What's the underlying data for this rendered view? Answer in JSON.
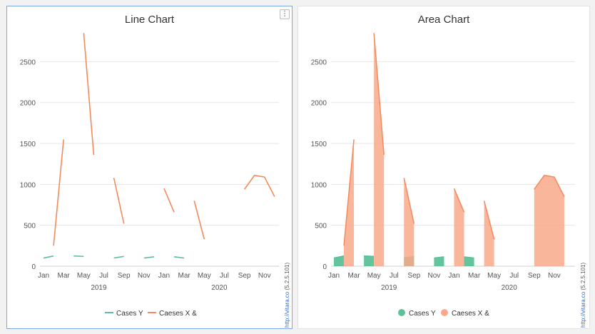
{
  "accent": "#7fa7e0",
  "colors": {
    "series_y": "#5cbf97",
    "series_x": "#f28a5c",
    "area_y": "#5cc199",
    "area_x": "#f9a98a",
    "area_overlap": "#c49a7a"
  },
  "menu_icon": "kebab-menu-icon",
  "credit": {
    "site": "http://vitara.co",
    "version": "(5.2.5.101)"
  },
  "chart_data": [
    {
      "type": "line",
      "title": "Line Chart",
      "xlabel": "",
      "ylabel": "",
      "ylim": [
        0,
        2800
      ],
      "yticks": [
        0,
        500,
        1000,
        1500,
        2000,
        2500
      ],
      "grid": true,
      "legend": "bottom",
      "x": [
        "2019-01",
        "2019-02",
        "2019-03",
        "2019-04",
        "2019-05",
        "2019-06",
        "2019-07",
        "2019-08",
        "2019-09",
        "2019-10",
        "2019-11",
        "2019-12",
        "2020-01",
        "2020-02",
        "2020-03",
        "2020-04",
        "2020-05",
        "2020-06",
        "2020-07",
        "2020-08",
        "2020-09",
        "2020-10",
        "2020-11",
        "2020-12"
      ],
      "x_tick_labels": [
        "Jan",
        "Mar",
        "May",
        "Jul",
        "Sep",
        "Nov",
        "Jan",
        "Mar",
        "May",
        "Jul",
        "Sep",
        "Nov"
      ],
      "year_labels": [
        "2019",
        "2020"
      ],
      "series": [
        {
          "name": "Cases Y",
          "values": [
            100,
            125,
            null,
            125,
            120,
            null,
            null,
            100,
            120,
            null,
            100,
            115,
            null,
            115,
            100,
            null,
            null,
            null,
            null,
            null,
            null,
            null,
            null,
            null
          ]
        },
        {
          "name": "Caeses X &",
          "values": [
            null,
            250,
            1550,
            null,
            2850,
            1360,
            null,
            1080,
            520,
            null,
            null,
            null,
            950,
            660,
            null,
            800,
            330,
            null,
            null,
            null,
            940,
            1110,
            1090,
            850
          ]
        }
      ]
    },
    {
      "type": "area",
      "title": "Area Chart",
      "xlabel": "",
      "ylabel": "",
      "ylim": [
        0,
        2800
      ],
      "yticks": [
        0,
        500,
        1000,
        1500,
        2000,
        2500
      ],
      "grid": true,
      "legend": "bottom",
      "x": [
        "2019-01",
        "2019-02",
        "2019-03",
        "2019-04",
        "2019-05",
        "2019-06",
        "2019-07",
        "2019-08",
        "2019-09",
        "2019-10",
        "2019-11",
        "2019-12",
        "2020-01",
        "2020-02",
        "2020-03",
        "2020-04",
        "2020-05",
        "2020-06",
        "2020-07",
        "2020-08",
        "2020-09",
        "2020-10",
        "2020-11",
        "2020-12"
      ],
      "x_tick_labels": [
        "Jan",
        "Mar",
        "May",
        "Jul",
        "Sep",
        "Nov",
        "Jan",
        "Mar",
        "May",
        "Jul",
        "Sep",
        "Nov"
      ],
      "year_labels": [
        "2019",
        "2020"
      ],
      "series": [
        {
          "name": "Cases Y",
          "values": [
            100,
            125,
            null,
            125,
            120,
            null,
            null,
            100,
            120,
            null,
            100,
            115,
            null,
            115,
            100,
            null,
            null,
            null,
            null,
            null,
            null,
            null,
            null,
            null
          ]
        },
        {
          "name": "Caeses X &",
          "values": [
            null,
            250,
            1550,
            null,
            2850,
            1360,
            null,
            1080,
            520,
            null,
            null,
            null,
            950,
            660,
            null,
            800,
            330,
            null,
            null,
            null,
            940,
            1110,
            1090,
            850
          ]
        }
      ]
    }
  ]
}
